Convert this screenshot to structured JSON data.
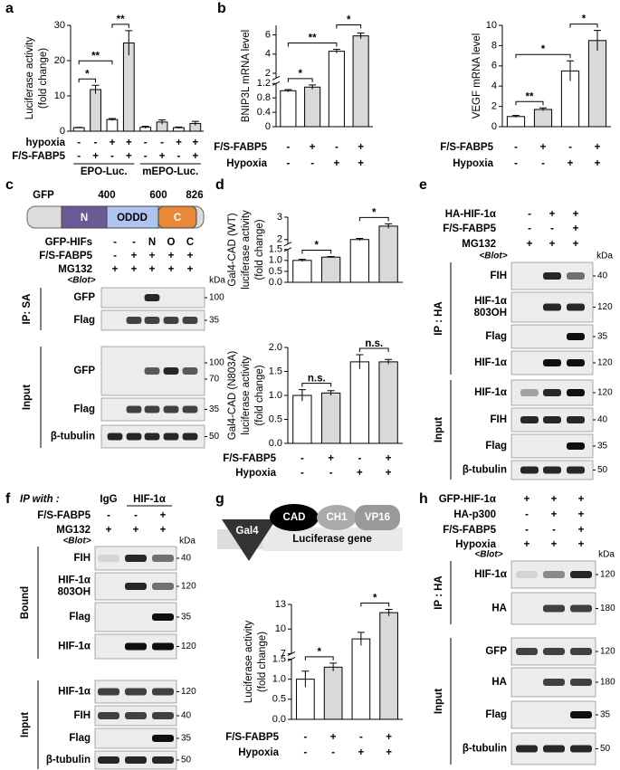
{
  "a": {
    "letter": "a",
    "ylabel": [
      "Luciferase activity",
      "(fold change)"
    ],
    "ylim": [
      0,
      30
    ],
    "yticks": [
      0,
      10,
      20,
      30
    ],
    "values": [
      1.0,
      11.8,
      3.3,
      25.0,
      1.1,
      2.6,
      1.0,
      2.2
    ],
    "errors": [
      0.1,
      1.2,
      0.3,
      3.5,
      0.3,
      0.6,
      0.2,
      0.6
    ],
    "colors": [
      "#ffffff",
      "#d9d9d9",
      "#ffffff",
      "#d9d9d9",
      "#ffffff",
      "#d9d9d9",
      "#ffffff",
      "#d9d9d9"
    ],
    "conditions": [
      {
        "label": "hypoxia",
        "values": [
          "-",
          "-",
          "+",
          "+",
          "-",
          "-",
          "+",
          "+"
        ]
      },
      {
        "label": "F/S-FABP5",
        "values": [
          "-",
          "+",
          "-",
          "+",
          "-",
          "+",
          "-",
          "+"
        ]
      }
    ],
    "groups": [
      {
        "label": "EPO-Luc.",
        "bars": [
          0,
          3
        ]
      },
      {
        "label": "mEPO-Luc.",
        "bars": [
          4,
          7
        ]
      }
    ],
    "sig": [
      {
        "bars": [
          0,
          1
        ],
        "label": "*"
      },
      {
        "bars": [
          0,
          2
        ],
        "label": "**"
      },
      {
        "bars": [
          2,
          3
        ],
        "label": "**"
      }
    ]
  },
  "b": {
    "letter": "b",
    "charts": [
      {
        "ylabel": [
          "BNIP3L mRNA level"
        ],
        "segments": [
          {
            "ylim": [
              0,
              1.2
            ],
            "yticks": [
              0,
              0.4,
              0.8,
              1.2
            ]
          },
          {
            "ylim": [
              1.5,
              7
            ],
            "yticks": [
              2,
              4,
              6
            ]
          }
        ],
        "values": [
          1.0,
          1.1,
          4.3,
          5.9
        ],
        "errors": [
          0.03,
          0.06,
          0.2,
          0.3
        ],
        "colors": [
          "#ffffff",
          "#d9d9d9",
          "#ffffff",
          "#d9d9d9"
        ],
        "conditions": [
          {
            "label": "F/S-FABP5",
            "values": [
              "-",
              "+",
              "-",
              "+"
            ]
          },
          {
            "label": "Hypoxia",
            "values": [
              "-",
              "-",
              "+",
              "+"
            ]
          }
        ],
        "sig": [
          {
            "bars": [
              0,
              1
            ],
            "label": "*"
          },
          {
            "bars": [
              0,
              2
            ],
            "label": "**"
          },
          {
            "bars": [
              2,
              3
            ],
            "label": "*"
          }
        ]
      },
      {
        "ylabel": [
          "VEGF mRNA level"
        ],
        "ylim": [
          0,
          10
        ],
        "yticks": [
          0,
          2,
          4,
          6,
          8,
          10
        ],
        "values": [
          1.0,
          1.7,
          5.5,
          8.5
        ],
        "errors": [
          0.1,
          0.15,
          1.0,
          1.0
        ],
        "colors": [
          "#ffffff",
          "#d9d9d9",
          "#ffffff",
          "#d9d9d9"
        ],
        "conditions": [
          {
            "label": "F/S-FABP5",
            "values": [
              "-",
              "+",
              "-",
              "+"
            ]
          },
          {
            "label": "Hypoxia",
            "values": [
              "-",
              "-",
              "+",
              "+"
            ]
          }
        ],
        "sig": [
          {
            "bars": [
              0,
              1
            ],
            "label": "**"
          },
          {
            "bars": [
              0,
              2
            ],
            "label": "*"
          },
          {
            "bars": [
              2,
              3
            ],
            "label": "*"
          }
        ]
      }
    ]
  },
  "c": {
    "letter": "c",
    "domain": {
      "tag": "GFP",
      "positions": [
        400,
        600,
        826
      ],
      "regions": [
        "N",
        "ODDD",
        "C"
      ]
    },
    "conditions": [
      {
        "label": "GFP-HIFs",
        "values": [
          "-",
          "-",
          "N",
          "O",
          "C"
        ]
      },
      {
        "label": "F/S-FABP5",
        "values": [
          "-",
          "+",
          "+",
          "+",
          "+"
        ]
      },
      {
        "label": "MG132",
        "values": [
          "+",
          "+",
          "+",
          "+",
          "+"
        ]
      }
    ],
    "blot": "<Blot>",
    "kda": "kDa",
    "groups": [
      {
        "label": "IP: SA",
        "rows": [
          {
            "label": "GFP",
            "markers": [
              100
            ]
          },
          {
            "label": "Flag",
            "markers": [
              35
            ]
          }
        ]
      },
      {
        "label": "Input",
        "rows": [
          {
            "label": "GFP",
            "markers": [
              100,
              70
            ]
          },
          {
            "label": "Flag",
            "markers": [
              35
            ]
          },
          {
            "label": "β-tubulin",
            "markers": [
              50
            ]
          }
        ]
      }
    ]
  },
  "d": {
    "letter": "d",
    "charts": [
      {
        "ylabel": [
          "Gal4-CAD (WT)",
          "luciferase activity",
          "(fold change)"
        ],
        "segments": [
          {
            "ylim": [
              0,
              1.5
            ],
            "yticks": [
              {
                "value": 0,
                "label": "0.0"
              },
              0.5,
              {
                "value": 1,
                "label": "1.0"
              },
              1.5
            ]
          },
          {
            "ylim": [
              1.8,
              3
            ],
            "yticks": [
              2,
              3
            ]
          }
        ],
        "values": [
          1.0,
          1.15,
          2.0,
          2.6
        ],
        "errors": [
          0.05,
          0.03,
          0.05,
          0.1
        ],
        "colors": [
          "#ffffff",
          "#d9d9d9",
          "#ffffff",
          "#d9d9d9"
        ],
        "sig": [
          {
            "bars": [
              0,
              1
            ],
            "label": "*"
          },
          {
            "bars": [
              2,
              3
            ],
            "label": "*"
          }
        ]
      },
      {
        "ylabel": [
          "Gal4-CAD (N803A)",
          "luciferase activity",
          "(fold change)"
        ],
        "ylim": [
          0,
          2
        ],
        "yticks": [
          {
            "value": 0,
            "label": "0.0"
          },
          0.5,
          {
            "value": 1,
            "label": "1.0"
          },
          1.5,
          {
            "value": 2,
            "label": "2.0"
          }
        ],
        "values": [
          1.0,
          1.05,
          1.7,
          1.7
        ],
        "errors": [
          0.12,
          0.05,
          0.15,
          0.05
        ],
        "colors": [
          "#ffffff",
          "#d9d9d9",
          "#ffffff",
          "#d9d9d9"
        ],
        "conditions": [
          {
            "label": "F/S-FABP5",
            "values": [
              "-",
              "+",
              "-",
              "+"
            ]
          },
          {
            "label": "Hypoxia",
            "values": [
              "-",
              "-",
              "+",
              "+"
            ]
          }
        ],
        "sig": [
          {
            "bars": [
              0,
              1
            ],
            "label": "n.s."
          },
          {
            "bars": [
              2,
              3
            ],
            "label": "n.s."
          }
        ]
      }
    ]
  },
  "e": {
    "letter": "e",
    "conditions": [
      {
        "label": "HA-HIF-1α",
        "values": [
          "-",
          "+",
          "+"
        ]
      },
      {
        "label": "F/S-FABP5",
        "values": [
          "-",
          "-",
          "+"
        ]
      },
      {
        "label": "MG132",
        "values": [
          "+",
          "+",
          "+"
        ]
      }
    ],
    "blot": "<Blot>",
    "kda": "kDa",
    "groups": [
      {
        "label": "IP : HA",
        "rows": [
          {
            "label": "FIH",
            "markers": [
              40
            ]
          },
          {
            "label": [
              "HIF-1α",
              "803OH"
            ],
            "markers": [
              120
            ]
          },
          {
            "label": "Flag",
            "markers": [
              35
            ]
          },
          {
            "label": "HIF-1α",
            "markers": [
              120
            ]
          }
        ]
      },
      {
        "label": "Input",
        "rows": [
          {
            "label": "HIF-1α",
            "markers": [
              120
            ]
          },
          {
            "label": "FIH",
            "markers": [
              40
            ]
          },
          {
            "label": "Flag",
            "markers": [
              35
            ]
          },
          {
            "label": "β-tubulin",
            "markers": [
              50
            ]
          }
        ]
      }
    ]
  },
  "f": {
    "letter": "f",
    "ip_with": "IP with :",
    "columns": [
      "IgG",
      "HIF-1α"
    ],
    "conditions": [
      {
        "label": "F/S-FABP5",
        "values": [
          "-",
          "-",
          "+"
        ]
      },
      {
        "label": "MG132",
        "values": [
          "+",
          "+",
          "+"
        ]
      }
    ],
    "blot": "<Blot>",
    "kda": "kDa",
    "groups": [
      {
        "label": "Bound",
        "rows": [
          {
            "label": "FIH",
            "markers": [
              40
            ]
          },
          {
            "label": [
              "HIF-1α",
              "803OH"
            ],
            "markers": [
              120
            ]
          },
          {
            "label": "Flag",
            "markers": [
              35
            ]
          },
          {
            "label": "HIF-1α",
            "markers": [
              120
            ]
          }
        ]
      },
      {
        "label": "Input",
        "rows": [
          {
            "label": "HIF-1α",
            "markers": [
              120
            ]
          },
          {
            "label": "FIH",
            "markers": [
              40
            ]
          },
          {
            "label": "Flag",
            "markers": [
              35
            ]
          },
          {
            "label": "β-tubulin",
            "markers": [
              50
            ]
          }
        ]
      }
    ]
  },
  "g": {
    "letter": "g",
    "diagram": {
      "gal4": "Gal4",
      "cad": "CAD",
      "ch1": "CH1",
      "vp16": "VP16",
      "gene": "Luciferase gene"
    },
    "chart": {
      "ylabel": [
        "Luciferase activity",
        "(fold change)"
      ],
      "segments": [
        {
          "ylim": [
            0,
            1.5
          ],
          "yticks": [
            {
              "value": 0,
              "label": "0.0"
            },
            0.5,
            {
              "value": 1,
              "label": "1.0"
            },
            1.5
          ]
        },
        {
          "ylim": [
            7,
            13
          ],
          "yticks": [
            7,
            10,
            13
          ]
        }
      ],
      "values": [
        1.0,
        1.3,
        8.8,
        12.0
      ],
      "errors": [
        0.2,
        0.1,
        0.8,
        0.4
      ],
      "colors": [
        "#ffffff",
        "#d9d9d9",
        "#ffffff",
        "#d9d9d9"
      ],
      "conditions": [
        {
          "label": "F/S-FABP5",
          "values": [
            "-",
            "+",
            "-",
            "+"
          ]
        },
        {
          "label": "Hypoxia",
          "values": [
            "-",
            "-",
            "+",
            "+"
          ]
        }
      ],
      "sig": [
        {
          "bars": [
            0,
            1
          ],
          "label": "*"
        },
        {
          "bars": [
            2,
            3
          ],
          "label": "*"
        }
      ]
    }
  },
  "h": {
    "letter": "h",
    "conditions": [
      {
        "label": "GFP-HIF-1α",
        "values": [
          "+",
          "+",
          "+"
        ]
      },
      {
        "label": "HA-p300",
        "values": [
          "-",
          "+",
          "+"
        ]
      },
      {
        "label": "F/S-FABP5",
        "values": [
          "-",
          "-",
          "+"
        ]
      },
      {
        "label": "Hypoxia",
        "values": [
          "+",
          "+",
          "+"
        ]
      }
    ],
    "blot": "<Blot>",
    "kda": "kDa",
    "groups": [
      {
        "label": "IP : HA",
        "rows": [
          {
            "label": "HIF-1α",
            "markers": [
              120
            ]
          },
          {
            "label": "HA",
            "markers": [
              180
            ]
          }
        ]
      },
      {
        "label": "Input",
        "rows": [
          {
            "label": "GFP",
            "markers": [
              120
            ]
          },
          {
            "label": "HA",
            "markers": [
              180
            ]
          },
          {
            "label": "Flag",
            "markers": [
              35
            ]
          },
          {
            "label": "β-tubulin",
            "markers": [
              50
            ]
          }
        ]
      }
    ]
  }
}
